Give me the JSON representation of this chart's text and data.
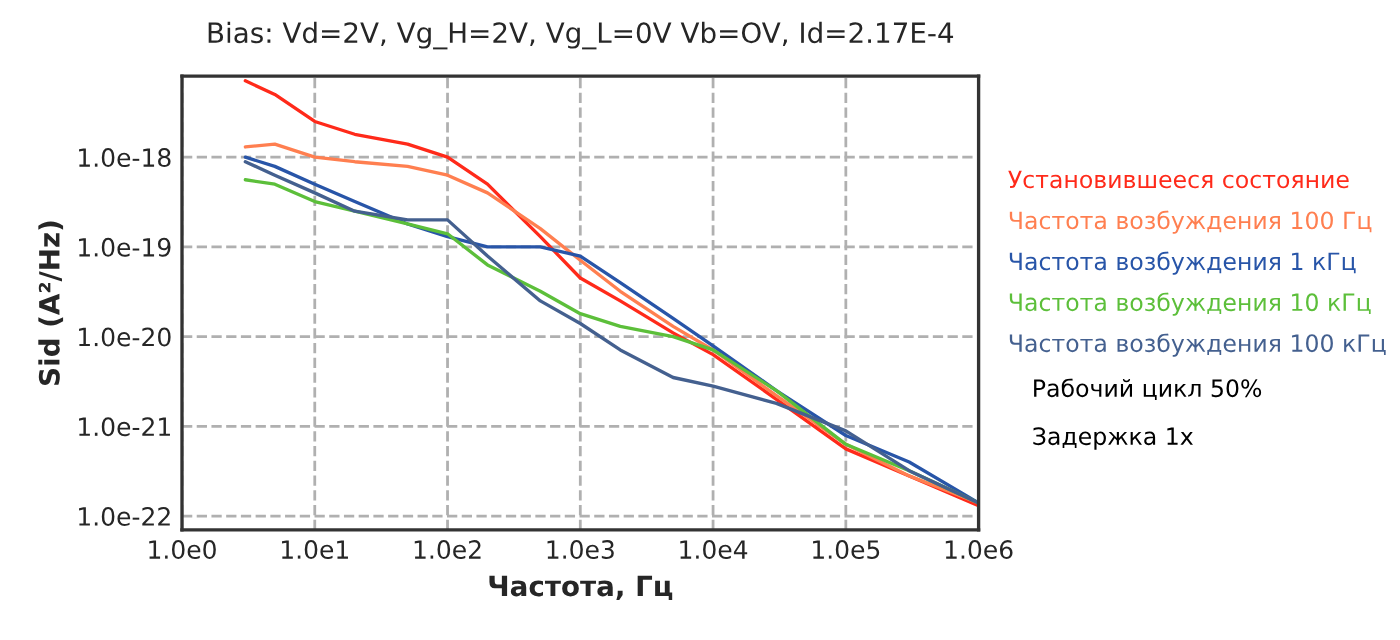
{
  "chart_data": {
    "type": "line",
    "title": "Bias: Vd=2V, Vg_H=2V, Vg_L=0V Vb=OV, Id=2.17E-4",
    "xlabel": "Частота, Гц",
    "ylabel": "Sid (A²/Hz)",
    "x": [
      3,
      5,
      10,
      20,
      50,
      100,
      200,
      500,
      1000,
      2000,
      5000,
      10000,
      30000,
      100000,
      300000,
      1000000
    ],
    "series": [
      {
        "name": "Установившееся состояние",
        "color": "#ff2a1a",
        "values": [
          7.1e-18,
          5e-18,
          2.5e-18,
          1.8e-18,
          1.4e-18,
          1e-18,
          5e-19,
          1.3e-19,
          4.5e-20,
          2.5e-20,
          1.1e-20,
          6.3e-21,
          2e-21,
          5.6e-22,
          2.8e-22,
          1.3e-22
        ]
      },
      {
        "name": "Частота возбуждения 100 Гц",
        "color": "#ff7f50",
        "values": [
          1.3e-18,
          1.4e-18,
          1e-18,
          8.9e-19,
          7.9e-19,
          6.3e-19,
          4e-19,
          1.6e-19,
          7.1e-20,
          3.2e-20,
          1.3e-20,
          7.1e-21,
          2.2e-21,
          6.3e-22,
          2.8e-22,
          1.4e-22
        ]
      },
      {
        "name": "Частота возбуждения 1 кГц",
        "color": "#2855a8",
        "values": [
          1e-18,
          7.9e-19,
          5e-19,
          3.2e-19,
          1.8e-19,
          1.3e-19,
          1e-19,
          1e-19,
          7.9e-20,
          4e-20,
          1.6e-20,
          7.9e-21,
          2.5e-21,
          7.9e-22,
          4e-22,
          1.4e-22
        ]
      },
      {
        "name": "Частота возбуждения 10 кГц",
        "color": "#5cbf3a",
        "values": [
          5.6e-19,
          5e-19,
          3.2e-19,
          2.5e-19,
          1.8e-19,
          1.4e-19,
          6.3e-20,
          3.2e-20,
          1.8e-20,
          1.3e-20,
          1e-20,
          7.1e-21,
          2.5e-21,
          6.3e-22,
          3.2e-22,
          1.4e-22
        ]
      },
      {
        "name": "Частота возбуждения 100 кГц",
        "color": "#44608f",
        "values": [
          8.9e-19,
          6.3e-19,
          4e-19,
          2.5e-19,
          2e-19,
          2e-19,
          7.9e-20,
          2.5e-20,
          1.4e-20,
          7.1e-21,
          3.5e-21,
          2.8e-21,
          1.8e-21,
          8.9e-22,
          3.2e-22,
          1.4e-22
        ]
      }
    ],
    "log": "xy",
    "xlim": [
      1,
      1000000
    ],
    "ylim": [
      7e-23,
      8e-18
    ],
    "xticks": [
      {
        "value": 1,
        "label": "1.0e0"
      },
      {
        "value": 10,
        "label": "1.0e1"
      },
      {
        "value": 100,
        "label": "1.0e2"
      },
      {
        "value": 1000,
        "label": "1.0e3"
      },
      {
        "value": 10000,
        "label": "1.0e4"
      },
      {
        "value": 100000,
        "label": "1.0e5"
      },
      {
        "value": 1000000,
        "label": "1.0e6"
      }
    ],
    "yticks": [
      {
        "value": 1e-22,
        "label": "1.0e-22"
      },
      {
        "value": 1e-21,
        "label": "1.0e-21"
      },
      {
        "value": 1e-20,
        "label": "1.0e-20"
      },
      {
        "value": 1e-19,
        "label": "1.0e-19"
      },
      {
        "value": 1e-18,
        "label": "1.0e-18"
      }
    ],
    "grid": true,
    "legend": "right",
    "marker": "none",
    "line_style": "solid",
    "annotations": [
      "Рабочий цикл 50%",
      "Задержка 1x"
    ]
  }
}
